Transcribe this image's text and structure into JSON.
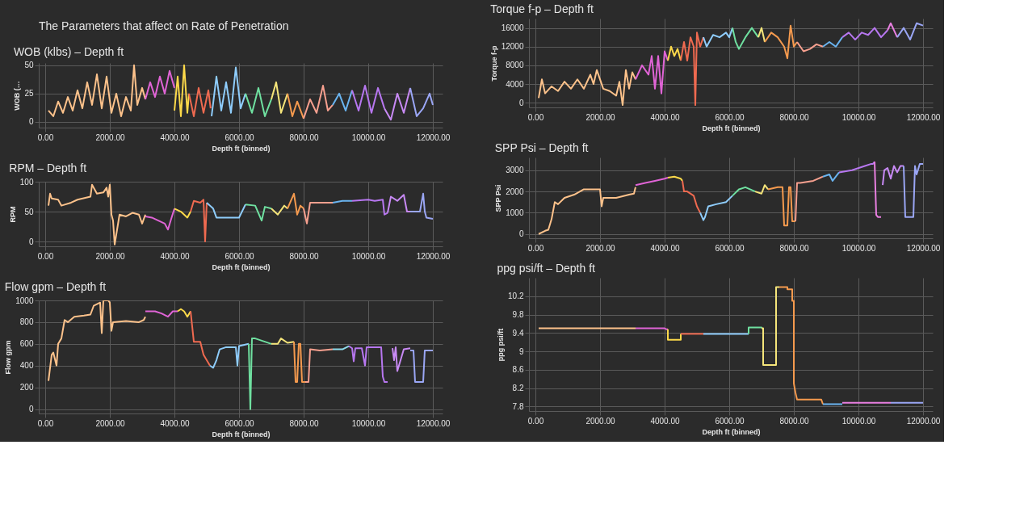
{
  "chart_data": [
    {
      "type": "other",
      "title": "The Parameters that affect on Rate of Penetration"
    },
    {
      "type": "line",
      "title": "WOB (klbs) – Depth ft",
      "xlabel": "Depth ft (binned)",
      "ylabel": "WOB (…",
      "grid": true,
      "xlim": [
        -200,
        12300
      ],
      "ylim": [
        -5,
        52
      ],
      "xticks": [
        {
          "value": 0,
          "label": "0.00"
        },
        {
          "value": 2000,
          "label": "2000.00"
        },
        {
          "value": 4000,
          "label": "4000.00"
        },
        {
          "value": 6000,
          "label": "6000.00"
        },
        {
          "value": 8000,
          "label": "8000.00"
        },
        {
          "value": 10000,
          "label": "10000.00"
        },
        {
          "value": 12000,
          "label": "12000.00"
        }
      ],
      "yticks": [
        0,
        25,
        50
      ],
      "series": [
        {
          "color": "#fdc28b",
          "x": [
            100,
            250,
            400,
            550,
            700,
            850,
            1000,
            1150,
            1300,
            1450,
            1600,
            1750,
            1900,
            2050,
            2200,
            2350,
            2500,
            2650,
            2750,
            2850,
            3000,
            3100
          ],
          "values": [
            10,
            5,
            18,
            8,
            22,
            10,
            28,
            12,
            35,
            15,
            42,
            12,
            40,
            8,
            25,
            5,
            22,
            10,
            50,
            15,
            30,
            20
          ]
        },
        {
          "color": "#e064d6",
          "x": [
            3100,
            3250,
            3400,
            3550,
            3700,
            3850,
            4000
          ],
          "values": [
            20,
            35,
            22,
            40,
            25,
            45,
            30
          ]
        },
        {
          "color": "#fcd94a",
          "x": [
            4000,
            4100,
            4200,
            4300,
            4400,
            4450
          ],
          "values": [
            10,
            40,
            5,
            50,
            8,
            25
          ]
        },
        {
          "color": "#ef6a50",
          "x": [
            4450,
            4600,
            4750,
            4900,
            5050,
            5120
          ],
          "values": [
            25,
            5,
            30,
            8,
            28,
            12
          ]
        },
        {
          "color": "#8fcdfc",
          "x": [
            5150,
            5300,
            5450,
            5600,
            5750,
            5900,
            6050,
            6200
          ],
          "values": [
            5,
            40,
            10,
            35,
            8,
            48,
            12,
            25
          ]
        },
        {
          "color": "#6fe0a0",
          "x": [
            6200,
            6400,
            6600,
            6800,
            7000
          ],
          "values": [
            25,
            8,
            30,
            5,
            20
          ]
        },
        {
          "color": "#f5e57a",
          "x": [
            7000,
            7150,
            7300,
            7500
          ],
          "values": [
            20,
            35,
            8,
            25
          ]
        },
        {
          "color": "#f59a4e",
          "x": [
            7500,
            7650,
            7800,
            8000
          ],
          "values": [
            25,
            5,
            18,
            3
          ]
        },
        {
          "color": "#f7a08f",
          "x": [
            8000,
            8200,
            8400,
            8600,
            8750,
            8900
          ],
          "values": [
            3,
            20,
            8,
            32,
            10,
            15
          ]
        },
        {
          "color": "#6ab4f0",
          "x": [
            8900,
            9100,
            9300,
            9500
          ],
          "values": [
            15,
            25,
            10,
            28
          ]
        },
        {
          "color": "#b777f0",
          "x": [
            9500,
            9700,
            9900,
            10100,
            10300,
            10500
          ],
          "values": [
            28,
            10,
            32,
            8,
            30,
            12
          ]
        },
        {
          "color": "#c88af5",
          "x": [
            10500,
            10700,
            10900,
            11100,
            11300
          ],
          "values": [
            12,
            2,
            25,
            8,
            30
          ]
        },
        {
          "color": "#9aa6f5",
          "x": [
            11300,
            11500,
            11700,
            11900,
            12000
          ],
          "values": [
            30,
            5,
            12,
            25,
            15
          ]
        }
      ]
    },
    {
      "type": "line",
      "title": "RPM – Depth ft",
      "xlabel": "Depth ft (binned)",
      "ylabel": "RPM",
      "grid": true,
      "xlim": [
        -200,
        12300
      ],
      "ylim": [
        -8,
        100
      ],
      "xticks": [
        {
          "value": 0,
          "label": "0.00"
        },
        {
          "value": 2000,
          "label": "2000.00"
        },
        {
          "value": 4000,
          "label": "4000.00"
        },
        {
          "value": 6000,
          "label": "6000.00"
        },
        {
          "value": 8000,
          "label": "8000.00"
        },
        {
          "value": 10000,
          "label": "10000.00"
        },
        {
          "value": 12000,
          "label": "12000.00"
        }
      ],
      "yticks": [
        0,
        50,
        100
      ],
      "series": [
        {
          "color": "#fdc28b",
          "x": [
            100,
            150,
            200,
            400,
            500,
            800,
            1000,
            1400,
            1450,
            1600,
            1800,
            1900,
            1950,
            2000,
            2050,
            2100,
            2150,
            2300,
            2500,
            2700,
            2900,
            3000,
            3100
          ],
          "values": [
            60,
            80,
            72,
            70,
            60,
            65,
            70,
            75,
            95,
            80,
            82,
            90,
            75,
            95,
            45,
            35,
            -5,
            45,
            42,
            48,
            45,
            30,
            45
          ]
        },
        {
          "color": "#e064d6",
          "x": [
            3100,
            3300,
            3500,
            3700,
            3800,
            3900,
            4000
          ],
          "values": [
            42,
            40,
            35,
            30,
            20,
            38,
            55
          ]
        },
        {
          "color": "#fcd94a",
          "x": [
            4000,
            4200,
            4400,
            4500
          ],
          "values": [
            55,
            50,
            40,
            50
          ]
        },
        {
          "color": "#ef6a50",
          "x": [
            4500,
            4600,
            4800,
            4900,
            4950,
            5000
          ],
          "values": [
            50,
            68,
            65,
            70,
            0,
            65
          ]
        },
        {
          "color": "#8fcdfc",
          "x": [
            5000,
            5200,
            5300,
            5500,
            6000,
            6200
          ],
          "values": [
            65,
            55,
            40,
            40,
            40,
            62
          ]
        },
        {
          "color": "#6fe0a0",
          "x": [
            6200,
            6500,
            6700,
            6800,
            7000
          ],
          "values": [
            62,
            60,
            35,
            58,
            55
          ]
        },
        {
          "color": "#f5e57a",
          "x": [
            7000,
            7200,
            7400,
            7500
          ],
          "values": [
            55,
            45,
            60,
            55
          ]
        },
        {
          "color": "#f59a4e",
          "x": [
            7500,
            7700,
            7800,
            7900,
            8000
          ],
          "values": [
            55,
            80,
            45,
            60,
            55
          ]
        },
        {
          "color": "#f7a08f",
          "x": [
            8000,
            8100,
            8200,
            8500,
            8900
          ],
          "values": [
            55,
            30,
            65,
            65,
            65
          ]
        },
        {
          "color": "#6ab4f0",
          "x": [
            8900,
            9200,
            9500
          ],
          "values": [
            65,
            68,
            68
          ]
        },
        {
          "color": "#b777f0",
          "x": [
            9500,
            10000,
            10200,
            10450,
            10500,
            10600
          ],
          "values": [
            68,
            70,
            68,
            70,
            45,
            48
          ]
        },
        {
          "color": "#c88af5",
          "x": [
            10600,
            10700,
            10900,
            11100,
            11200,
            11300
          ],
          "values": [
            48,
            75,
            68,
            78,
            50,
            50
          ]
        },
        {
          "color": "#9aa6f5",
          "x": [
            11300,
            11600,
            11700,
            11750,
            11800,
            12000
          ],
          "values": [
            50,
            50,
            80,
            50,
            40,
            38
          ]
        }
      ]
    },
    {
      "type": "line",
      "title": "Flow gpm – Depth ft",
      "xlabel": "Depth ft (binned)",
      "ylabel": "Flow gpm",
      "grid": true,
      "xlim": [
        -200,
        12300
      ],
      "ylim": [
        -40,
        1000
      ],
      "xticks": [
        {
          "value": 0,
          "label": "0.00"
        },
        {
          "value": 2000,
          "label": "2000.00"
        },
        {
          "value": 4000,
          "label": "4000.00"
        },
        {
          "value": 6000,
          "label": "6000.00"
        },
        {
          "value": 8000,
          "label": "8000.00"
        },
        {
          "value": 10000,
          "label": "10000.00"
        },
        {
          "value": 12000,
          "label": "12000.00"
        }
      ],
      "yticks": [
        0,
        200,
        400,
        600,
        800,
        1000
      ],
      "series": [
        {
          "color": "#fdc28b",
          "x": [
            100,
            200,
            250,
            350,
            400,
            500,
            600,
            700,
            900,
            1200,
            1400,
            1500,
            1700,
            1750,
            1800,
            1950,
            2000,
            2050,
            2100,
            2500,
            2900,
            3050,
            3100
          ],
          "values": [
            260,
            500,
            520,
            400,
            600,
            650,
            820,
            800,
            850,
            860,
            870,
            950,
            980,
            700,
            1000,
            1000,
            980,
            720,
            800,
            810,
            800,
            820,
            850
          ]
        },
        {
          "color": "#e064d6",
          "x": [
            3100,
            3400,
            3600,
            3800,
            3950,
            4100
          ],
          "values": [
            900,
            900,
            880,
            850,
            900,
            900
          ]
        },
        {
          "color": "#fcd94a",
          "x": [
            4100,
            4200,
            4300,
            4400,
            4500
          ],
          "values": [
            900,
            920,
            900,
            850,
            900
          ]
        },
        {
          "color": "#ef6a50",
          "x": [
            4500,
            4600,
            4800,
            4900,
            5000,
            5100
          ],
          "values": [
            900,
            620,
            620,
            500,
            450,
            400
          ]
        },
        {
          "color": "#8fcdfc",
          "x": [
            5100,
            5200,
            5300,
            5400,
            5600,
            5900,
            5950,
            6000,
            6300
          ],
          "values": [
            400,
            380,
            450,
            550,
            570,
            570,
            400,
            580,
            600
          ]
        },
        {
          "color": "#6fe0a0",
          "x": [
            6300,
            6350,
            6400,
            6500,
            6800,
            7000
          ],
          "values": [
            600,
            0,
            650,
            650,
            620,
            600
          ]
        },
        {
          "color": "#f5e57a",
          "x": [
            7000,
            7200,
            7300,
            7500,
            7700
          ],
          "values": [
            600,
            600,
            650,
            610,
            620
          ]
        },
        {
          "color": "#f59a4e",
          "x": [
            7700,
            7750,
            7800,
            7850,
            7900,
            7950,
            8000,
            8050
          ],
          "values": [
            620,
            250,
            250,
            600,
            600,
            250,
            250,
            250
          ]
        },
        {
          "color": "#f7a08f",
          "x": [
            8050,
            8150,
            8200,
            8500,
            8900
          ],
          "values": [
            250,
            250,
            550,
            540,
            550
          ]
        },
        {
          "color": "#8fdcec",
          "x": [
            8900,
            9200,
            9400
          ],
          "values": [
            550,
            550,
            580
          ]
        },
        {
          "color": "#b777f0",
          "x": [
            9400,
            9500,
            9550,
            9600,
            9800,
            9900,
            9950,
            10400,
            10450,
            10500,
            10600
          ],
          "values": [
            580,
            560,
            440,
            560,
            560,
            400,
            570,
            570,
            300,
            250,
            250
          ]
        },
        {
          "color": "#c88af5",
          "x": [
            10750,
            10800,
            10850,
            10900,
            11100,
            11300
          ],
          "values": [
            560,
            450,
            570,
            350,
            550,
            560
          ]
        },
        {
          "color": "#9aa6f5",
          "x": [
            11300,
            11400,
            11450,
            11700,
            11750,
            12000
          ],
          "values": [
            540,
            540,
            250,
            250,
            540,
            540
          ]
        }
      ]
    },
    {
      "type": "line",
      "title": "Torque f-p – Depth ft",
      "xlabel": "Depth ft (binned)",
      "ylabel": "Torque f-p",
      "grid": true,
      "xlim": [
        -200,
        12300
      ],
      "ylim": [
        -1000,
        18000
      ],
      "xticks": [
        {
          "value": 0,
          "label": "0.00"
        },
        {
          "value": 2000,
          "label": "2000.00"
        },
        {
          "value": 4000,
          "label": "4000.00"
        },
        {
          "value": 6000,
          "label": "6000.00"
        },
        {
          "value": 8000,
          "label": "8000.00"
        },
        {
          "value": 10000,
          "label": "10000.00"
        },
        {
          "value": 12000,
          "label": "12000.00"
        }
      ],
      "yticks": [
        0,
        4000,
        8000,
        12000,
        16000
      ],
      "series": [
        {
          "color": "#fdc28b",
          "x": [
            100,
            200,
            300,
            500,
            700,
            900,
            1100,
            1300,
            1500,
            1700,
            1800,
            1900,
            2100,
            2300,
            2500,
            2600,
            2700,
            2800,
            2900,
            3000,
            3100
          ],
          "values": [
            1000,
            5000,
            2000,
            3500,
            2500,
            4500,
            3000,
            5000,
            3000,
            6000,
            4000,
            7000,
            3000,
            2500,
            1500,
            4500,
            -500,
            7000,
            3000,
            6500,
            5000
          ]
        },
        {
          "color": "#e064d6",
          "x": [
            3100,
            3300,
            3500,
            3600,
            3700,
            3800,
            3900,
            4000,
            4100
          ],
          "values": [
            5000,
            8000,
            6000,
            10000,
            3000,
            10000,
            2000,
            11000,
            9000
          ]
        },
        {
          "color": "#fcd94a",
          "x": [
            4100,
            4200,
            4300,
            4400,
            4500
          ],
          "values": [
            9000,
            12000,
            10000,
            11500,
            9000
          ]
        },
        {
          "color": "#ef6a50",
          "x": [
            4500,
            4600,
            4700,
            4800,
            4900,
            4950,
            5000,
            5100,
            5200
          ],
          "values": [
            9000,
            13000,
            9000,
            14000,
            12000,
            -500,
            15000,
            12000,
            14000
          ]
        },
        {
          "color": "#8fcdfc",
          "x": [
            5200,
            5300,
            5500,
            5700,
            5900,
            6000,
            6100
          ],
          "values": [
            14000,
            12000,
            14500,
            14000,
            15000,
            14000,
            16000
          ]
        },
        {
          "color": "#6fe0a0",
          "x": [
            6100,
            6200,
            6300,
            6500,
            6700,
            6900
          ],
          "values": [
            16000,
            13000,
            11500,
            14000,
            16000,
            14000
          ]
        },
        {
          "color": "#f5e57a",
          "x": [
            6900,
            7000,
            7100
          ],
          "values": [
            14000,
            16000,
            13000
          ]
        },
        {
          "color": "#f59a4e",
          "x": [
            7100,
            7300,
            7500,
            7700,
            7800,
            7900,
            8000,
            8100
          ],
          "values": [
            13000,
            15000,
            14000,
            12000,
            9500,
            16500,
            12000,
            13000
          ]
        },
        {
          "color": "#f7a08f",
          "x": [
            8100,
            8300,
            8500,
            8700,
            8900
          ],
          "values": [
            13000,
            11000,
            11500,
            12500,
            12000
          ]
        },
        {
          "color": "#6ab4f0",
          "x": [
            8900,
            9100,
            9300,
            9500
          ],
          "values": [
            12000,
            13000,
            12000,
            14000
          ]
        },
        {
          "color": "#b777f0",
          "x": [
            9500,
            9700,
            9900,
            10100,
            10300,
            10500,
            10700,
            10900
          ],
          "values": [
            14000,
            15000,
            13500,
            15000,
            14500,
            16000,
            14000,
            15500
          ]
        },
        {
          "color": "#e87fe0",
          "x": [
            10900,
            11000,
            11200
          ],
          "values": [
            15500,
            17000,
            14000
          ]
        },
        {
          "color": "#9aa6f5",
          "x": [
            11200,
            11400,
            11600,
            11800,
            12000
          ],
          "values": [
            14000,
            16000,
            13500,
            17000,
            16500
          ]
        }
      ]
    },
    {
      "type": "line",
      "title": "SPP Psi – Depth ft",
      "ylabel": "SPP Psi",
      "grid": true,
      "tick_labels": true,
      "xlim": [
        -200,
        12300
      ],
      "ylim": [
        -200,
        3600
      ],
      "xticks": [
        {
          "value": 0,
          "label": "0.00"
        },
        {
          "value": 2000,
          "label": "2000.00"
        },
        {
          "value": 4000,
          "label": "4000.00"
        },
        {
          "value": 6000,
          "label": "6000.00"
        },
        {
          "value": 8000,
          "label": "8000.00"
        },
        {
          "value": 10000,
          "label": "10000.00"
        },
        {
          "value": 12000,
          "label": "12000.00"
        }
      ],
      "yticks": [
        0,
        1000,
        2000,
        3000
      ],
      "series": [
        {
          "color": "#fdc28b",
          "x": [
            100,
            300,
            400,
            500,
            600,
            700,
            900,
            1200,
            1500,
            1700,
            2000,
            2050,
            2100,
            2500,
            2900,
            3050,
            3100
          ],
          "values": [
            0,
            150,
            200,
            700,
            1500,
            1400,
            1700,
            1850,
            2100,
            2100,
            2100,
            1300,
            1700,
            1700,
            1850,
            1900,
            2200
          ]
        },
        {
          "color": "#e064d6",
          "x": [
            3100,
            3400,
            3700,
            4000,
            4100
          ],
          "values": [
            2300,
            2400,
            2500,
            2600,
            2650
          ]
        },
        {
          "color": "#fcd94a",
          "x": [
            4100,
            4300,
            4500,
            4550
          ],
          "values": [
            2650,
            2700,
            2600,
            2500
          ]
        },
        {
          "color": "#ef6a50",
          "x": [
            4550,
            4600,
            4700,
            4900,
            5000,
            5100
          ],
          "values": [
            2500,
            2000,
            2000,
            1800,
            1300,
            1000
          ]
        },
        {
          "color": "#8fcdfc",
          "x": [
            5100,
            5200,
            5250,
            5350,
            5600,
            5900,
            6100
          ],
          "values": [
            1000,
            650,
            800,
            1300,
            1400,
            1500,
            1800
          ]
        },
        {
          "color": "#6fe0a0",
          "x": [
            6100,
            6300,
            6500,
            6800
          ],
          "values": [
            1800,
            2100,
            2200,
            2000
          ]
        },
        {
          "color": "#f5e57a",
          "x": [
            6800,
            7000,
            7100,
            7200
          ],
          "values": [
            2000,
            1900,
            2300,
            2100
          ]
        },
        {
          "color": "#f59a4e",
          "x": [
            7200,
            7500,
            7650,
            7700,
            7800,
            7850,
            7900,
            7950,
            8000,
            8050
          ],
          "values": [
            2100,
            2200,
            2200,
            400,
            400,
            2200,
            2200,
            600,
            600,
            600
          ]
        },
        {
          "color": "#f7a08f",
          "x": [
            8050,
            8100,
            8200,
            8600,
            8900
          ],
          "values": [
            600,
            2400,
            2400,
            2500,
            2700
          ]
        },
        {
          "color": "#6ab4f0",
          "x": [
            8900,
            9100,
            9200,
            9400
          ],
          "values": [
            2700,
            2800,
            2500,
            2900
          ]
        },
        {
          "color": "#b777f0",
          "x": [
            9400,
            9800,
            10200,
            10400,
            10450,
            10500
          ],
          "values": [
            2900,
            3000,
            3200,
            3300,
            3300,
            3400
          ]
        },
        {
          "color": "#e87fe0",
          "x": [
            10500,
            10550,
            10600,
            10700
          ],
          "values": [
            3400,
            900,
            800,
            800
          ]
        },
        {
          "color": "#c88af5",
          "x": [
            10750,
            10800,
            10900,
            11000,
            11100,
            11200,
            11300,
            11400
          ],
          "values": [
            2300,
            3000,
            3100,
            2600,
            3200,
            2900,
            3200,
            3200
          ]
        },
        {
          "color": "#9aa6f5",
          "x": [
            11400,
            11450,
            11700,
            11750,
            11800,
            11900,
            12000
          ],
          "values": [
            3200,
            800,
            800,
            3200,
            2800,
            3300,
            3300
          ]
        }
      ]
    },
    {
      "type": "line",
      "title": "ppg psi/ft – Depth ft",
      "xlabel": "Depth ft (binned)",
      "ylabel": "ppg psi/ft",
      "grid": true,
      "xlim": [
        -200,
        12300
      ],
      "ylim": [
        7.7,
        10.6
      ],
      "xticks": [
        {
          "value": 0,
          "label": "0.00"
        },
        {
          "value": 2000,
          "label": "2000.00"
        },
        {
          "value": 4000,
          "label": "4000.00"
        },
        {
          "value": 6000,
          "label": "6000.00"
        },
        {
          "value": 8000,
          "label": "8000.00"
        },
        {
          "value": 10000,
          "label": "10000.00"
        },
        {
          "value": 12000,
          "label": "12000.00"
        }
      ],
      "yticks": [
        7.8,
        8.2,
        8.6,
        9,
        9.4,
        9.8,
        10.2
      ],
      "series": [
        {
          "color": "#fdc28b",
          "x": [
            100,
            3100
          ],
          "values": [
            9.5,
            9.5
          ]
        },
        {
          "color": "#e064d6",
          "x": [
            3100,
            4000,
            4050,
            4100
          ],
          "values": [
            9.5,
            9.5,
            9.48,
            9.48
          ]
        },
        {
          "color": "#fcd94a",
          "x": [
            4100,
            4100,
            4500,
            4500
          ],
          "values": [
            9.48,
            9.25,
            9.25,
            9.38
          ]
        },
        {
          "color": "#ef6a50",
          "x": [
            4500,
            5200
          ],
          "values": [
            9.38,
            9.38
          ]
        },
        {
          "color": "#8fcdfc",
          "x": [
            5200,
            6600
          ],
          "values": [
            9.38,
            9.38
          ]
        },
        {
          "color": "#6fe0a0",
          "x": [
            6600,
            6600,
            7000,
            7000
          ],
          "values": [
            9.38,
            9.52,
            9.52,
            9.5
          ]
        },
        {
          "color": "#f5e57a",
          "x": [
            7000,
            7050,
            7050,
            7450,
            7450,
            7550
          ],
          "values": [
            9.5,
            9.5,
            8.7,
            8.7,
            10.4,
            10.4
          ]
        },
        {
          "color": "#f59a4e",
          "x": [
            7550,
            7800,
            7800,
            7950,
            7950,
            8000,
            8000,
            8050,
            8100,
            8400,
            8850,
            8900
          ],
          "values": [
            10.4,
            10.4,
            10.35,
            10.35,
            10.1,
            10.1,
            8.3,
            8.1,
            7.95,
            7.95,
            7.95,
            7.85
          ]
        },
        {
          "color": "#6ab4f0",
          "x": [
            8900,
            9500
          ],
          "values": [
            7.85,
            7.85
          ]
        },
        {
          "color": "#e87fe0",
          "x": [
            9500,
            11000
          ],
          "values": [
            7.88,
            7.88
          ]
        },
        {
          "color": "#9aa6f5",
          "x": [
            11000,
            12000
          ],
          "values": [
            7.88,
            7.88
          ]
        }
      ]
    }
  ]
}
